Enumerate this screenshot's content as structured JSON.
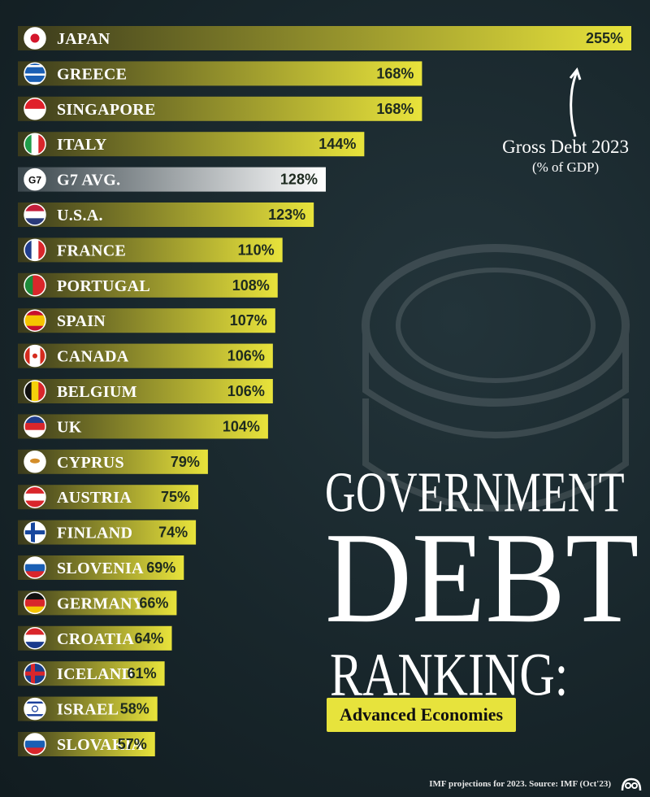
{
  "chart_data": {
    "type": "bar",
    "orientation": "horizontal",
    "title": "GOVERNMENT DEBT RANKING:",
    "subtitle": "Advanced Economies",
    "measure_label": "Gross Debt 2023",
    "measure_unit": "(% of GDP)",
    "categories": [
      "JAPAN",
      "GREECE",
      "SINGAPORE",
      "ITALY",
      "G7 AVG.",
      "U.S.A.",
      "FRANCE",
      "PORTUGAL",
      "SPAIN",
      "CANADA",
      "BELGIUM",
      "UK",
      "CYPRUS",
      "AUSTRIA",
      "FINLAND",
      "SLOVENIA",
      "GERMANY",
      "CROATIA",
      "ICELAND",
      "ISRAEL",
      "SLOVAKIA"
    ],
    "values": [
      255,
      168,
      168,
      144,
      128,
      123,
      110,
      108,
      107,
      106,
      106,
      104,
      79,
      75,
      74,
      69,
      66,
      64,
      61,
      58,
      57
    ],
    "value_labels": [
      "255%",
      "168%",
      "168%",
      "144%",
      "128%",
      "123%",
      "110%",
      "108%",
      "107%",
      "106%",
      "106%",
      "104%",
      "79%",
      "75%",
      "74%",
      "69%",
      "66%",
      "64%",
      "61%",
      "58%",
      "57%"
    ],
    "highlight": "G7 AVG.",
    "flags": [
      "japan-flag-icon",
      "greece-flag-icon",
      "singapore-flag-icon",
      "italy-flag-icon",
      "g7-icon",
      "usa-flag-icon",
      "france-flag-icon",
      "portugal-flag-icon",
      "spain-flag-icon",
      "canada-flag-icon",
      "belgium-flag-icon",
      "uk-flag-icon",
      "cyprus-flag-icon",
      "austria-flag-icon",
      "finland-flag-icon",
      "slovenia-flag-icon",
      "germany-flag-icon",
      "croatia-flag-icon",
      "iceland-flag-icon",
      "israel-flag-icon",
      "slovakia-flag-icon"
    ],
    "g7_badge": "G7",
    "grid": false,
    "colors": {
      "bar_bright": "#e8e33b",
      "bar_dark": "#3a3a1c",
      "highlight_bright": "#ffffff",
      "highlight_dark": "#3b474d",
      "background": "#18262b"
    }
  },
  "title": {
    "line1": "GOVERNMENT",
    "line2": "DEBT",
    "line3": "RANKING:"
  },
  "badge": "Advanced Economies",
  "annotation": {
    "line1": "Gross Debt 2023",
    "line2": "(% of GDP)"
  },
  "source": "IMF projections for 2023. Source: IMF (Oct'23)"
}
